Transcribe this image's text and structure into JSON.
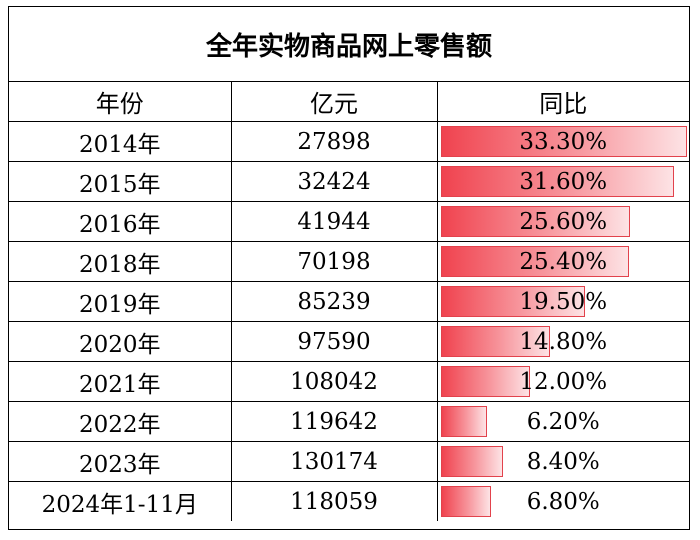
{
  "title": "全年实物商品网上零售额",
  "headers": [
    "年份",
    "亿元",
    "同比"
  ],
  "rows": [
    {
      "year": "2014年",
      "value": "27898",
      "yoy": "33.30%",
      "yoy_num": 33.3
    },
    {
      "year": "2015年",
      "value": "32424",
      "yoy": "31.60%",
      "yoy_num": 31.6
    },
    {
      "year": "2016年",
      "value": "41944",
      "yoy": "25.60%",
      "yoy_num": 25.6
    },
    {
      "year": "2018年",
      "value": "70198",
      "yoy": "25.40%",
      "yoy_num": 25.4
    },
    {
      "year": "2019年",
      "value": "85239",
      "yoy": "19.50%",
      "yoy_num": 19.5
    },
    {
      "year": "2020年",
      "value": "97590",
      "yoy": "14.80%",
      "yoy_num": 14.8
    },
    {
      "year": "2021年",
      "value": "108042",
      "yoy": "12.00%",
      "yoy_num": 12.0
    },
    {
      "year": "2022年",
      "value": "119642",
      "yoy": "6.20%",
      "yoy_num": 6.2
    },
    {
      "year": "2023年",
      "value": "130174",
      "yoy": "8.40%",
      "yoy_num": 8.4
    },
    {
      "year": "2024年1-11月",
      "value": "118059",
      "yoy": "6.80%",
      "yoy_num": 6.8
    }
  ],
  "colors": {
    "bar_start": "#f0434f",
    "bar_end": "#fde3e5",
    "bar_border": "#e2424c"
  }
}
